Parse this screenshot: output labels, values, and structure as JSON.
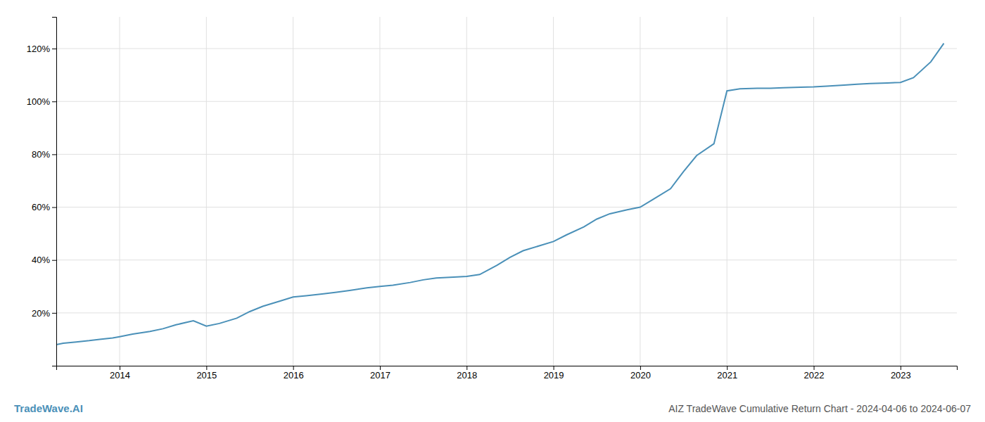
{
  "chart_data": {
    "type": "line",
    "title": "AIZ TradeWave Cumulative Return Chart - 2024-04-06 to 2024-06-07",
    "annotations": [
      "TradeWave.AI"
    ],
    "color": "#4a90b8",
    "x": [
      2013.27,
      2013.35,
      2013.5,
      2013.65,
      2013.77,
      2013.92,
      2014.0,
      2014.15,
      2014.35,
      2014.5,
      2014.65,
      2014.85,
      2015.0,
      2015.15,
      2015.35,
      2015.5,
      2015.65,
      2015.85,
      2016.0,
      2016.15,
      2016.35,
      2016.5,
      2016.65,
      2016.85,
      2017.0,
      2017.15,
      2017.35,
      2017.5,
      2017.65,
      2017.85,
      2018.0,
      2018.15,
      2018.35,
      2018.5,
      2018.65,
      2018.85,
      2019.0,
      2019.15,
      2019.35,
      2019.5,
      2019.65,
      2019.85,
      2020.0,
      2020.15,
      2020.35,
      2020.5,
      2020.65,
      2020.85,
      2021.0,
      2021.15,
      2021.35,
      2021.5,
      2021.65,
      2021.85,
      2022.0,
      2022.15,
      2022.35,
      2022.5,
      2022.65,
      2022.85,
      2023.0,
      2023.15,
      2023.35,
      2023.5
    ],
    "values": [
      0.08,
      0.085,
      0.09,
      0.095,
      0.1,
      0.105,
      0.11,
      0.12,
      0.13,
      0.14,
      0.155,
      0.17,
      0.15,
      0.16,
      0.18,
      0.205,
      0.225,
      0.245,
      0.26,
      0.265,
      0.272,
      0.278,
      0.285,
      0.295,
      0.3,
      0.305,
      0.315,
      0.325,
      0.332,
      0.335,
      0.338,
      0.345,
      0.38,
      0.41,
      0.435,
      0.455,
      0.47,
      0.495,
      0.525,
      0.555,
      0.575,
      0.59,
      0.6,
      0.63,
      0.67,
      0.735,
      0.795,
      0.84,
      1.04,
      1.048,
      1.05,
      1.05,
      1.052,
      1.054,
      1.055,
      1.058,
      1.062,
      1.065,
      1.068,
      1.07,
      1.072,
      1.09,
      1.15,
      1.22
    ],
    "xlim": [
      2013.27,
      2023.65
    ],
    "ylim": [
      0.0,
      1.32
    ],
    "xticks": [
      2014,
      2015,
      2016,
      2017,
      2018,
      2019,
      2020,
      2021,
      2022,
      2023
    ],
    "yticks": [
      {
        "value": 0.2,
        "label": "20%"
      },
      {
        "value": 0.4,
        "label": "40%"
      },
      {
        "value": 0.6,
        "label": "60%"
      },
      {
        "value": 0.8,
        "label": "80%"
      },
      {
        "value": 1.0,
        "label": "100%"
      },
      {
        "value": 1.2,
        "label": "120%"
      }
    ],
    "grid": true
  }
}
